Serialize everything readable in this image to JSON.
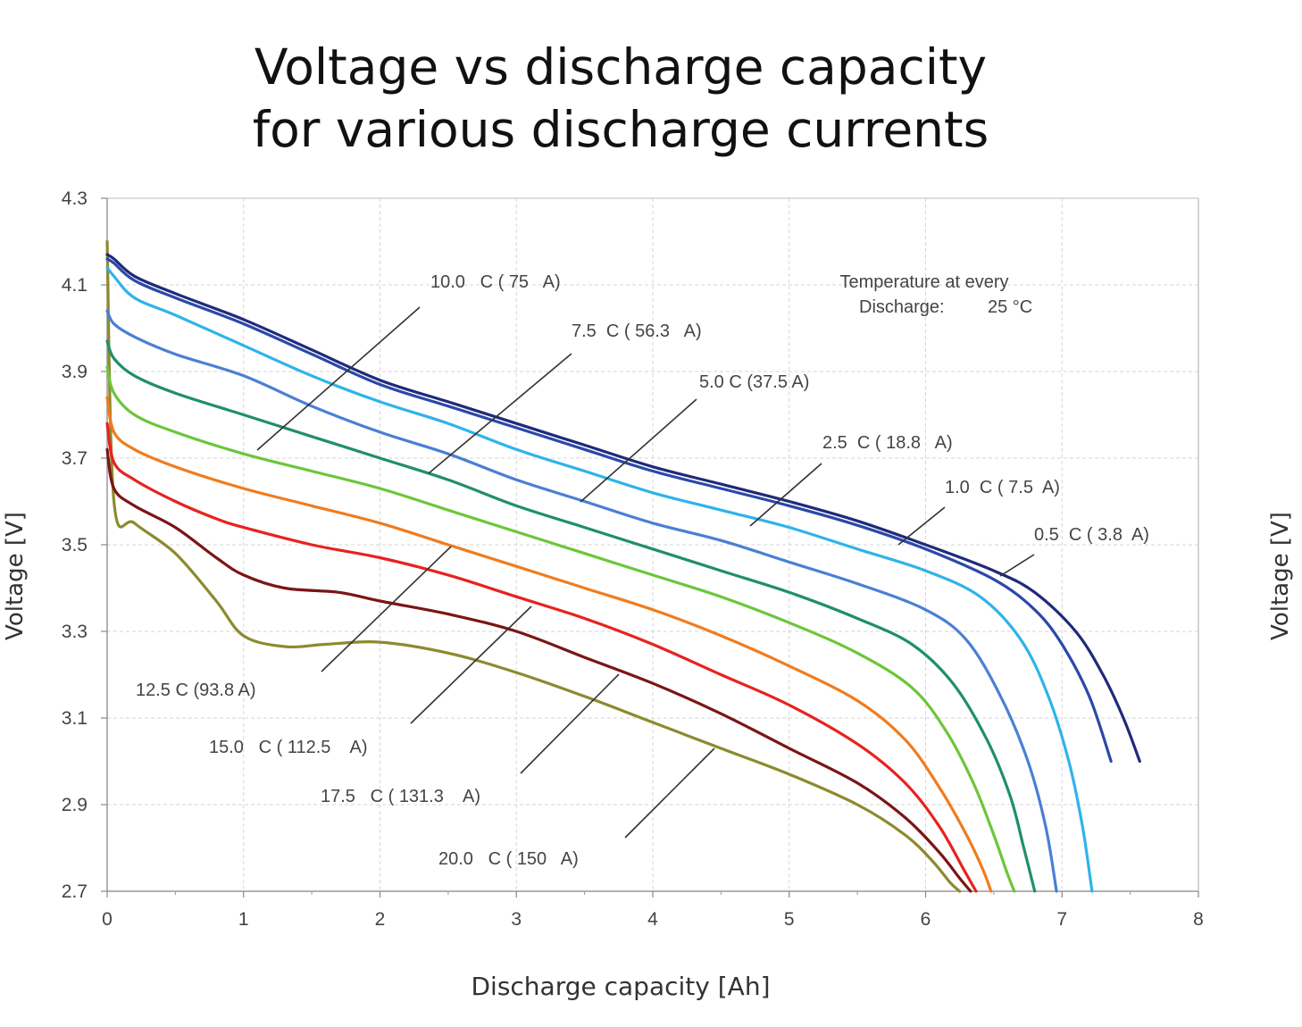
{
  "chart_data": {
    "type": "line",
    "title": "Voltage vs discharge capacity\nfor various discharge currents",
    "title_lines": [
      "Voltage vs discharge capacity",
      "for various discharge currents"
    ],
    "xlabel": "Discharge capacity [Ah]",
    "ylabel": "Voltage [V]",
    "ylabel_right": "Voltage [V]",
    "xlim": [
      0,
      8
    ],
    "ylim": [
      2.7,
      4.3
    ],
    "xticks": [
      "0",
      "1",
      "2",
      "3",
      "4",
      "5",
      "6",
      "7",
      "8"
    ],
    "yticks": [
      "2.7",
      "2.9",
      "3.1",
      "3.3",
      "3.5",
      "3.7",
      "3.9",
      "4.1",
      "4.3"
    ],
    "grid": true,
    "annotation": {
      "line1": "Temperature at every",
      "line2a": "Discharge:",
      "line2b": "25 °C"
    },
    "series": [
      {
        "name": "0.5  C ( 3.8  A)",
        "color": "#1f2a7a",
        "x": [
          0,
          0.05,
          0.2,
          0.5,
          1.0,
          1.5,
          2.0,
          2.5,
          3.0,
          3.5,
          4.0,
          4.5,
          5.0,
          5.5,
          6.0,
          6.5,
          6.8,
          7.1,
          7.3,
          7.45,
          7.57
        ],
        "y": [
          4.17,
          4.16,
          4.12,
          4.08,
          4.02,
          3.95,
          3.88,
          3.83,
          3.78,
          3.73,
          3.68,
          3.64,
          3.6,
          3.555,
          3.5,
          3.44,
          3.39,
          3.3,
          3.2,
          3.1,
          3.0
        ]
      },
      {
        "name": "1.0  C ( 7.5  A)",
        "color": "#2c48a8",
        "x": [
          0,
          0.05,
          0.2,
          0.5,
          1.0,
          1.5,
          2.0,
          2.5,
          3.0,
          3.5,
          4.0,
          4.5,
          5.0,
          5.5,
          6.0,
          6.5,
          6.8,
          7.0,
          7.2,
          7.36
        ],
        "y": [
          4.16,
          4.15,
          4.11,
          4.07,
          4.01,
          3.94,
          3.87,
          3.82,
          3.77,
          3.72,
          3.67,
          3.63,
          3.59,
          3.545,
          3.49,
          3.42,
          3.35,
          3.27,
          3.15,
          3.0
        ]
      },
      {
        "name": "2.5  C ( 18.8   A)",
        "color": "#2fb3ea",
        "x": [
          0,
          0.05,
          0.2,
          0.5,
          1.0,
          1.5,
          2.0,
          2.5,
          3.0,
          3.5,
          4.0,
          4.5,
          5.0,
          5.5,
          6.0,
          6.4,
          6.7,
          6.9,
          7.05,
          7.15,
          7.22
        ],
        "y": [
          4.14,
          4.12,
          4.07,
          4.03,
          3.96,
          3.89,
          3.83,
          3.78,
          3.72,
          3.67,
          3.62,
          3.58,
          3.54,
          3.49,
          3.44,
          3.38,
          3.28,
          3.15,
          3.0,
          2.85,
          2.7
        ]
      },
      {
        "name": "5.0 C (37.5 A)",
        "color": "#4a7fd4",
        "x": [
          0,
          0.05,
          0.2,
          0.5,
          1.0,
          1.5,
          2.0,
          2.5,
          3.0,
          3.5,
          4.0,
          4.5,
          5.0,
          5.5,
          6.0,
          6.3,
          6.55,
          6.75,
          6.88,
          6.96
        ],
        "y": [
          4.04,
          4.01,
          3.98,
          3.94,
          3.89,
          3.82,
          3.76,
          3.71,
          3.65,
          3.6,
          3.55,
          3.51,
          3.46,
          3.41,
          3.35,
          3.28,
          3.15,
          3.0,
          2.85,
          2.7
        ]
      },
      {
        "name": "7.5  C ( 56.3   A)",
        "color": "#1f8f6a",
        "x": [
          0,
          0.05,
          0.2,
          0.5,
          1.0,
          1.5,
          2.0,
          2.5,
          3.0,
          3.5,
          4.0,
          4.5,
          5.0,
          5.5,
          5.9,
          6.2,
          6.45,
          6.62,
          6.72,
          6.8
        ],
        "y": [
          3.97,
          3.93,
          3.89,
          3.85,
          3.8,
          3.75,
          3.7,
          3.65,
          3.59,
          3.54,
          3.49,
          3.44,
          3.39,
          3.33,
          3.27,
          3.18,
          3.05,
          2.92,
          2.8,
          2.7
        ]
      },
      {
        "name": "10.0   C ( 75   A)",
        "color": "#6cc63a",
        "x": [
          0,
          0.05,
          0.2,
          0.5,
          1.0,
          1.5,
          2.0,
          2.5,
          3.0,
          3.5,
          4.0,
          4.5,
          5.0,
          5.5,
          5.9,
          6.15,
          6.35,
          6.5,
          6.6,
          6.65
        ],
        "y": [
          3.91,
          3.85,
          3.8,
          3.76,
          3.71,
          3.67,
          3.63,
          3.58,
          3.53,
          3.48,
          3.43,
          3.38,
          3.32,
          3.25,
          3.17,
          3.07,
          2.95,
          2.83,
          2.74,
          2.7
        ]
      },
      {
        "name": "12.5 C (93.8 A)",
        "color": "#f07c1e",
        "x": [
          0,
          0.05,
          0.2,
          0.5,
          1.0,
          1.5,
          2.0,
          2.5,
          3.0,
          3.5,
          4.0,
          4.5,
          5.0,
          5.5,
          5.85,
          6.1,
          6.3,
          6.42,
          6.48
        ],
        "y": [
          3.84,
          3.76,
          3.72,
          3.68,
          3.63,
          3.59,
          3.55,
          3.5,
          3.45,
          3.4,
          3.35,
          3.29,
          3.22,
          3.14,
          3.05,
          2.94,
          2.83,
          2.75,
          2.7
        ]
      },
      {
        "name": "15.0   C ( 112.5    A)",
        "color": "#e8221e",
        "x": [
          0,
          0.05,
          0.2,
          0.5,
          0.8,
          1.0,
          1.5,
          2.0,
          2.5,
          3.0,
          3.5,
          4.0,
          4.5,
          5.0,
          5.5,
          5.85,
          6.1,
          6.28,
          6.37
        ],
        "y": [
          3.78,
          3.69,
          3.65,
          3.6,
          3.56,
          3.54,
          3.5,
          3.47,
          3.43,
          3.38,
          3.33,
          3.27,
          3.2,
          3.13,
          3.04,
          2.95,
          2.85,
          2.75,
          2.7
        ]
      },
      {
        "name": "17.5   C ( 131.3    A)",
        "color": "#7b1515",
        "x": [
          0,
          0.05,
          0.2,
          0.5,
          0.8,
          1.0,
          1.3,
          1.7,
          2.0,
          2.5,
          3.0,
          3.5,
          4.0,
          4.5,
          5.0,
          5.5,
          5.85,
          6.1,
          6.25,
          6.33
        ],
        "y": [
          3.72,
          3.63,
          3.59,
          3.54,
          3.47,
          3.43,
          3.4,
          3.39,
          3.37,
          3.34,
          3.3,
          3.24,
          3.18,
          3.11,
          3.03,
          2.95,
          2.87,
          2.79,
          2.73,
          2.7
        ]
      },
      {
        "name": "20.0   C ( 150   A)",
        "color": "#8c8a2e",
        "x": [
          0,
          0.05,
          0.2,
          0.5,
          0.8,
          1.0,
          1.3,
          1.6,
          2.0,
          2.5,
          3.0,
          3.5,
          4.0,
          4.5,
          5.0,
          5.5,
          5.85,
          6.05,
          6.18,
          6.25
        ],
        "y": [
          4.2,
          3.6,
          3.55,
          3.48,
          3.37,
          3.29,
          3.265,
          3.27,
          3.275,
          3.25,
          3.205,
          3.15,
          3.09,
          3.03,
          2.97,
          2.9,
          2.83,
          2.77,
          2.72,
          2.7
        ]
      }
    ],
    "label_order": [
      "10.0   C ( 75   A)",
      "7.5  C ( 56.3   A)",
      "5.0 C (37.5 A)",
      "2.5  C ( 18.8   A)",
      "1.0  C ( 7.5  A)",
      "0.5  C ( 3.8  A)",
      "12.5 C (93.8 A)",
      "15.0   C ( 112.5    A)",
      "17.5   C ( 131.3    A)",
      "20.0   C ( 150   A)"
    ]
  }
}
